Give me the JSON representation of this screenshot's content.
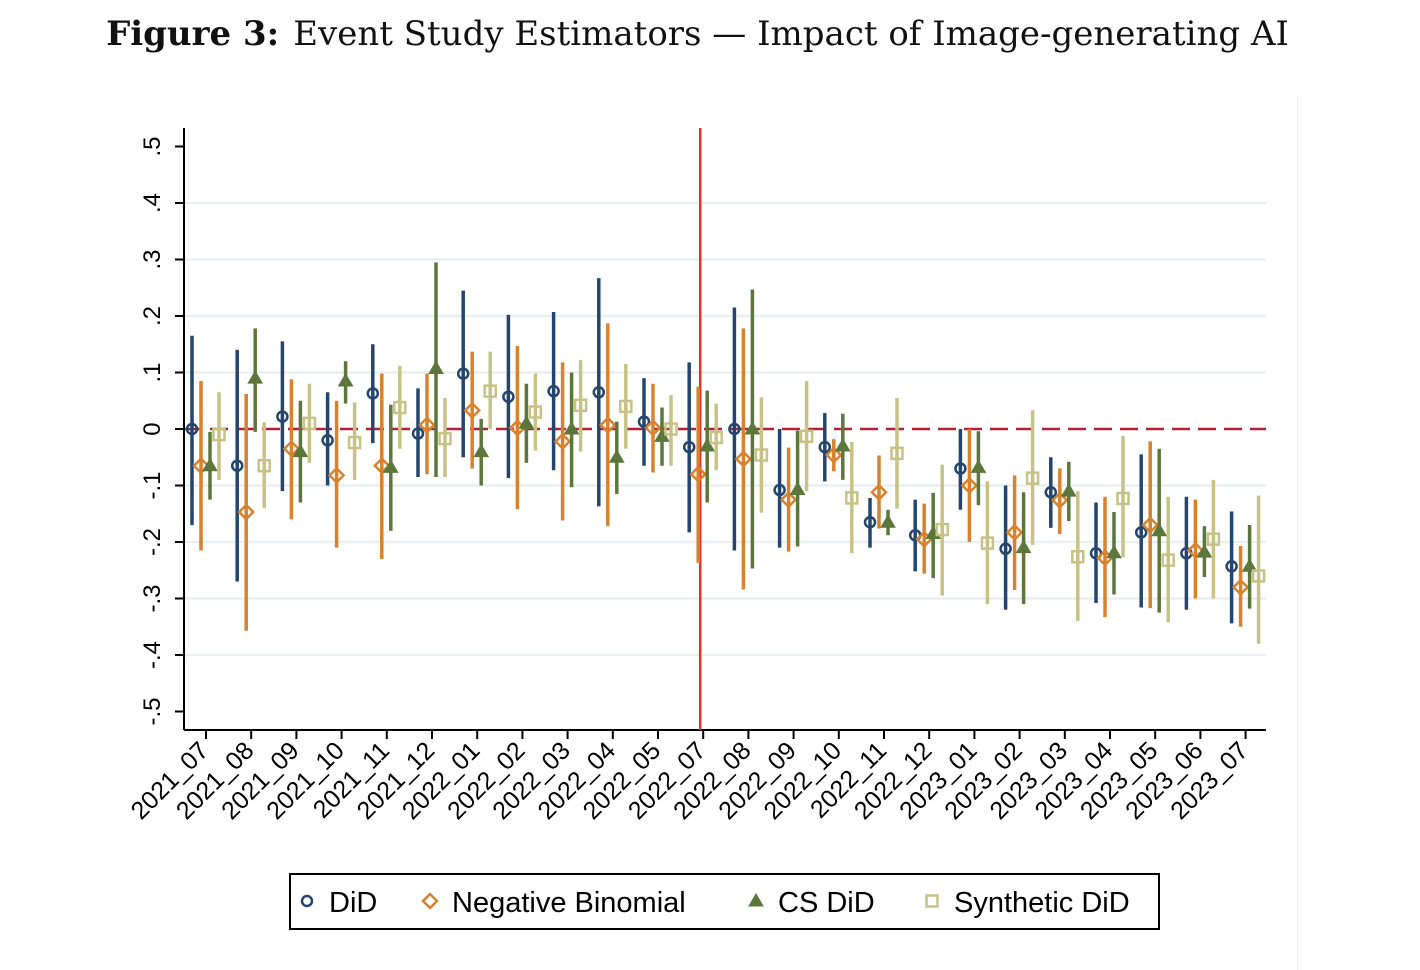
{
  "figure_label": "Figure 3:",
  "figure_title": "Event Study Estimators — Impact of Image-generating AI",
  "chart_data": {
    "type": "scatter",
    "subtype": "coefficient plot with confidence intervals",
    "xlabel": "",
    "ylabel": "",
    "ylim": [
      -0.5,
      0.5
    ],
    "yticks": [
      -0.5,
      -0.4,
      -0.3,
      -0.2,
      -0.1,
      0,
      0.1,
      0.2,
      0.3,
      0.4,
      0.5
    ],
    "ytick_labels": [
      "-.5",
      "-.4",
      "-.3",
      "-.2",
      "-.1",
      "0",
      ".1",
      ".2",
      ".3",
      ".4",
      ".5"
    ],
    "grid": true,
    "reference_line_y": 0,
    "reference_line_color": "#b22234",
    "event_line_category": "2022_07",
    "event_line_color": "#e0322a",
    "legend_placement": "bottom",
    "categories": [
      "2021_07",
      "2021_08",
      "2021_09",
      "2021_10",
      "2021_11",
      "2021_12",
      "2022_01",
      "2022_02",
      "2022_03",
      "2022_04",
      "2022_05",
      "2022_07",
      "2022_08",
      "2022_09",
      "2022_10",
      "2022_11",
      "2022_12",
      "2023_01",
      "2023_02",
      "2023_03",
      "2023_04",
      "2023_05",
      "2023_06",
      "2023_07"
    ],
    "series": [
      {
        "name": "DiD",
        "marker": "circle",
        "color": "#24466e",
        "values": [
          0,
          -0.065,
          0.022,
          -0.02,
          0.063,
          -0.008,
          0.098,
          0.057,
          0.067,
          0.065,
          0.013,
          -0.032,
          0,
          -0.108,
          -0.032,
          -0.165,
          -0.188,
          -0.07,
          -0.212,
          -0.112,
          -0.22,
          -0.183,
          -0.22,
          -0.243
        ],
        "ci_low": [
          -0.17,
          -0.27,
          -0.11,
          -0.1,
          -0.025,
          -0.085,
          -0.05,
          -0.087,
          -0.073,
          -0.137,
          -0.065,
          -0.183,
          -0.215,
          -0.21,
          -0.093,
          -0.21,
          -0.252,
          -0.143,
          -0.32,
          -0.175,
          -0.308,
          -0.316,
          -0.32,
          -0.344
        ],
        "ci_high": [
          0.165,
          0.14,
          0.155,
          0.065,
          0.15,
          0.072,
          0.245,
          0.202,
          0.207,
          0.267,
          0.09,
          0.118,
          0.215,
          0,
          0.028,
          -0.122,
          -0.125,
          0,
          -0.1,
          -0.05,
          -0.13,
          -0.045,
          -0.12,
          -0.146
        ]
      },
      {
        "name": "Negative Binomial",
        "marker": "diamond",
        "color": "#d8822d",
        "values": [
          -0.065,
          -0.147,
          -0.035,
          -0.082,
          -0.065,
          0.007,
          0.033,
          0.002,
          -0.022,
          0.007,
          0.002,
          -0.08,
          -0.053,
          -0.125,
          -0.046,
          -0.112,
          -0.195,
          -0.1,
          -0.183,
          -0.126,
          -0.228,
          -0.17,
          -0.215,
          -0.28
        ],
        "ci_low": [
          -0.215,
          -0.357,
          -0.16,
          -0.21,
          -0.23,
          -0.08,
          -0.07,
          -0.142,
          -0.162,
          -0.172,
          -0.077,
          -0.237,
          -0.284,
          -0.217,
          -0.075,
          -0.176,
          -0.256,
          -0.2,
          -0.285,
          -0.186,
          -0.333,
          -0.317,
          -0.3,
          -0.35
        ],
        "ci_high": [
          0.085,
          0.062,
          0.088,
          0.05,
          0.098,
          0.098,
          0.137,
          0.147,
          0.118,
          0.187,
          0.08,
          0.075,
          0.178,
          -0.033,
          -0.018,
          -0.047,
          -0.132,
          0,
          -0.082,
          -0.07,
          -0.12,
          -0.022,
          -0.125,
          -0.207
        ]
      },
      {
        "name": "CS DiD",
        "marker": "triangle",
        "color": "#5c773b",
        "values": [
          -0.065,
          0.09,
          -0.04,
          0.085,
          -0.068,
          0.107,
          -0.04,
          0.01,
          0,
          -0.05,
          -0.013,
          -0.03,
          0,
          -0.107,
          -0.03,
          -0.165,
          -0.185,
          -0.068,
          -0.21,
          -0.11,
          -0.219,
          -0.18,
          -0.218,
          -0.243
        ],
        "ci_low": [
          -0.125,
          -0.005,
          -0.13,
          0.045,
          -0.18,
          -0.085,
          -0.1,
          -0.06,
          -0.103,
          -0.115,
          -0.065,
          -0.13,
          -0.247,
          -0.208,
          -0.09,
          -0.188,
          -0.264,
          -0.135,
          -0.31,
          -0.163,
          -0.293,
          -0.325,
          -0.262,
          -0.318
        ],
        "ci_high": [
          -0.005,
          0.178,
          0.05,
          0.12,
          0.043,
          0.295,
          0.018,
          0.08,
          0.1,
          0.013,
          0.038,
          0.068,
          0.247,
          -0.003,
          0.027,
          -0.143,
          -0.113,
          -0.004,
          -0.112,
          -0.058,
          -0.147,
          -0.035,
          -0.172,
          -0.17
        ]
      },
      {
        "name": "Synthetic DiD",
        "marker": "square",
        "color": "#c8c286",
        "values": [
          -0.01,
          -0.065,
          0.01,
          -0.024,
          0.038,
          -0.017,
          0.067,
          0.03,
          0.042,
          0.04,
          0,
          -0.015,
          -0.046,
          -0.013,
          -0.122,
          -0.043,
          -0.178,
          -0.202,
          -0.087,
          -0.226,
          -0.123,
          -0.232,
          -0.195,
          -0.26
        ],
        "ci_low": [
          -0.09,
          -0.14,
          -0.06,
          -0.09,
          -0.035,
          -0.085,
          0,
          -0.038,
          -0.04,
          -0.035,
          -0.065,
          -0.073,
          -0.148,
          -0.11,
          -0.22,
          -0.141,
          -0.295,
          -0.31,
          -0.205,
          -0.34,
          -0.227,
          -0.342,
          -0.3,
          -0.38
        ],
        "ci_high": [
          0.065,
          0.012,
          0.08,
          0.047,
          0.112,
          0.055,
          0.137,
          0.098,
          0.122,
          0.115,
          0.06,
          0.045,
          0.056,
          0.085,
          -0.023,
          0.055,
          -0.063,
          -0.093,
          0.033,
          -0.11,
          -0.012,
          -0.12,
          -0.09,
          -0.118
        ]
      }
    ]
  }
}
